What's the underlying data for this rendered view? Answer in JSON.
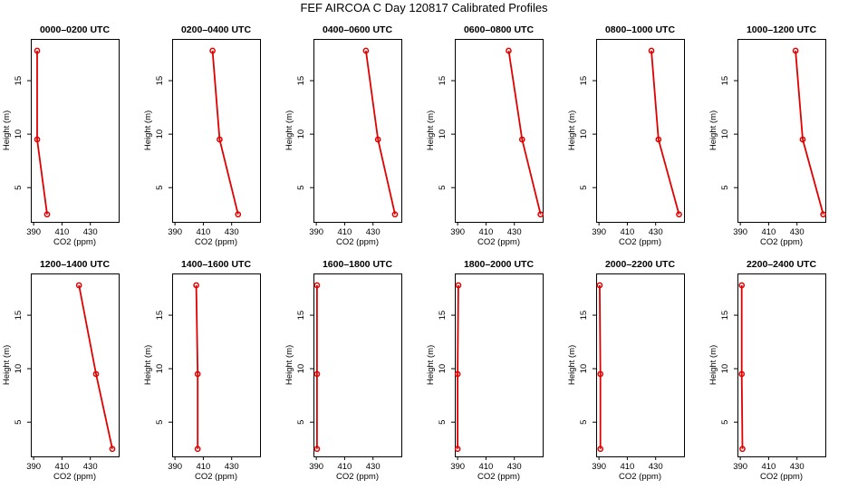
{
  "title": "FEF AIRCOA C  Day 120817  Calibrated Profiles",
  "colors": {
    "series": "#e00000",
    "axis": "#000000",
    "background": "#ffffff"
  },
  "chart_data": {
    "type": "line",
    "orientation": "profile (x = CO2, y = height)",
    "xlabel": "CO2 (ppm)",
    "ylabel": "Height (m)",
    "xlim": [
      388,
      450
    ],
    "ylim": [
      1.8,
      18.9
    ],
    "xticks": [
      390,
      410,
      430
    ],
    "yticks": [
      5,
      10,
      15
    ],
    "panels": [
      {
        "title": "0000–0200 UTC",
        "co2": [
          392.5,
          392.5,
          399.5
        ],
        "height": [
          17.8,
          9.5,
          2.5
        ]
      },
      {
        "title": "0200–0400 UTC",
        "co2": [
          416.5,
          421.5,
          434.5
        ],
        "height": [
          17.8,
          9.5,
          2.5
        ]
      },
      {
        "title": "0400–0600 UTC",
        "co2": [
          425.0,
          433.5,
          445.5
        ],
        "height": [
          17.8,
          9.5,
          2.5
        ]
      },
      {
        "title": "0600–0800 UTC",
        "co2": [
          426.0,
          435.5,
          448.5
        ],
        "height": [
          17.8,
          9.5,
          2.5
        ]
      },
      {
        "title": "0800–1000 UTC",
        "co2": [
          427.0,
          432.0,
          446.5
        ],
        "height": [
          17.8,
          9.5,
          2.5
        ]
      },
      {
        "title": "1000–1200 UTC",
        "co2": [
          429.0,
          434.0,
          448.5
        ],
        "height": [
          17.8,
          9.5,
          2.5
        ]
      },
      {
        "title": "1200–1400 UTC",
        "co2": [
          422.0,
          434.0,
          445.5
        ],
        "height": [
          17.8,
          9.5,
          2.5
        ]
      },
      {
        "title": "1400–1600 UTC",
        "co2": [
          405.0,
          406.0,
          406.0
        ],
        "height": [
          17.8,
          9.5,
          2.5
        ]
      },
      {
        "title": "1600–1800 UTC",
        "co2": [
          390.5,
          390.5,
          390.5
        ],
        "height": [
          17.8,
          9.5,
          2.5
        ]
      },
      {
        "title": "1800–2000 UTC",
        "co2": [
          390.5,
          390.0,
          390.0
        ],
        "height": [
          17.8,
          9.5,
          2.5
        ]
      },
      {
        "title": "2000–2200 UTC",
        "co2": [
          390.5,
          391.0,
          391.0
        ],
        "height": [
          17.8,
          9.5,
          2.5
        ]
      },
      {
        "title": "2200–2400 UTC",
        "co2": [
          391.0,
          391.0,
          391.5
        ],
        "height": [
          17.8,
          9.5,
          2.5
        ]
      }
    ]
  }
}
